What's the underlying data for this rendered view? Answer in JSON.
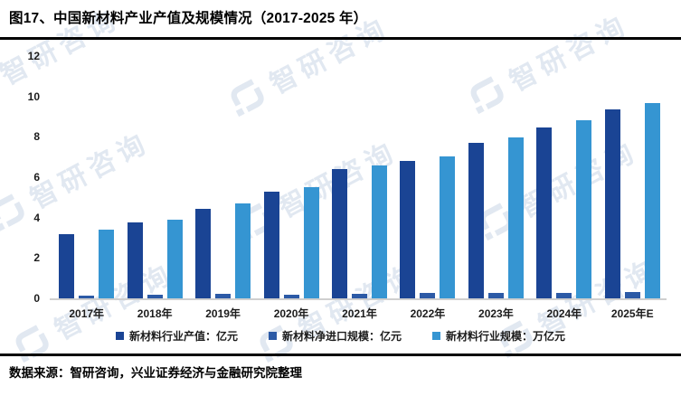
{
  "source": "数据来源：智研咨询，兴业证券经济与金融研究院整理",
  "watermark_text": "智研咨询",
  "chart_data": {
    "type": "bar",
    "title": "图17、中国新材料产业产值及规模情况（2017-2025 年）",
    "categories": [
      "2017年",
      "2018年",
      "2019年",
      "2020年",
      "2021年",
      "2022年",
      "2023年",
      "2024年",
      "2025年E"
    ],
    "series": [
      {
        "name": "新材料行业产值：亿元",
        "color": "#1a4494",
        "values": [
          3.2,
          3.75,
          4.45,
          5.3,
          6.4,
          6.8,
          7.7,
          8.45,
          9.35
        ]
      },
      {
        "name": "新材料净进口规模：亿元",
        "color": "#2c5aa6",
        "values": [
          0.15,
          0.18,
          0.22,
          0.2,
          0.22,
          0.25,
          0.27,
          0.28,
          0.3
        ]
      },
      {
        "name": "新材料行业规模：万亿元",
        "color": "#3595d2",
        "values": [
          3.4,
          3.9,
          4.7,
          5.5,
          6.6,
          7.05,
          7.95,
          8.8,
          9.65
        ]
      }
    ],
    "xlabel": "",
    "ylabel": "",
    "ylim": [
      0,
      12
    ],
    "yticks": [
      0,
      2,
      4,
      6,
      8,
      10,
      12
    ],
    "grid": false,
    "legend_position": "bottom"
  }
}
